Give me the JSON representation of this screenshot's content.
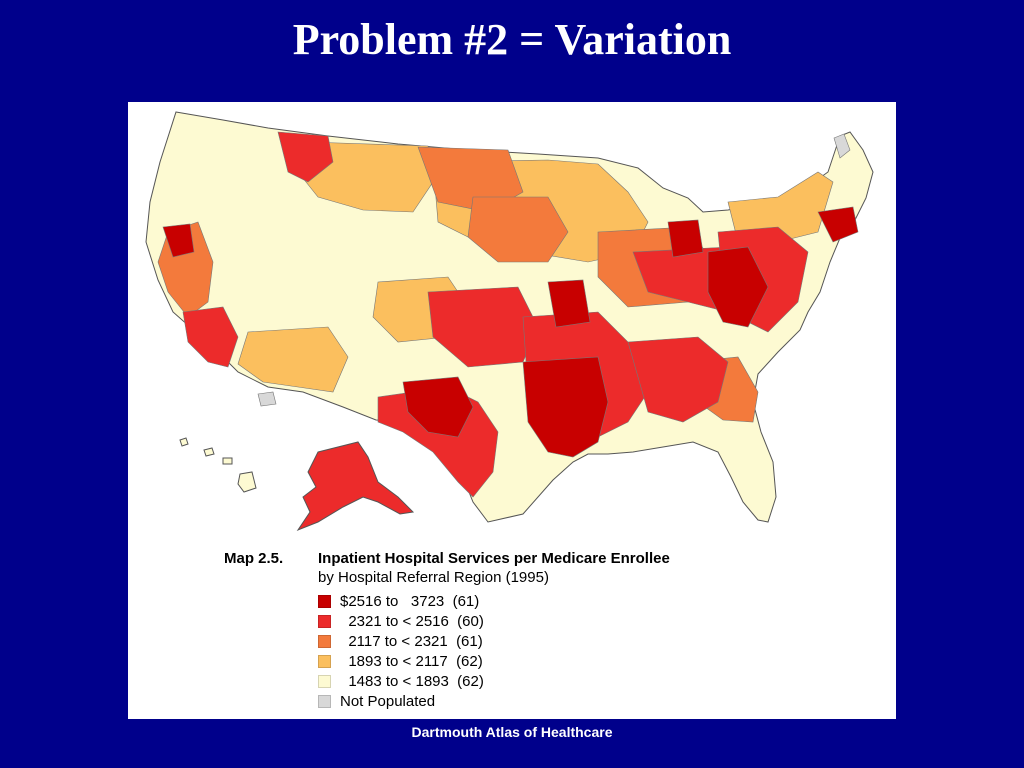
{
  "slide": {
    "title": "Problem #2 = Variation",
    "footer": "Dartmouth Atlas of Healthcare"
  },
  "legend": {
    "map_number": "Map 2.5.",
    "title": "Inpatient Hospital Services per Medicare Enrollee",
    "subtitle": "by Hospital Referral Region (1995)",
    "items": [
      {
        "label": "$2516 to   3723  (61)",
        "color": "#c80000"
      },
      {
        "label": "  2321 to < 2516  (60)",
        "color": "#ec2b2b"
      },
      {
        "label": "  2117 to < 2321  (61)",
        "color": "#f37a3c"
      },
      {
        "label": "  1893 to < 2117  (62)",
        "color": "#fbbf5e"
      },
      {
        "label": "  1483 to < 1893  (62)",
        "color": "#fdfad2"
      },
      {
        "label": "Not Populated",
        "color": "#d8d8d8"
      }
    ]
  },
  "map": {
    "name": "Hospital Referral Regions of the United States",
    "border_color": "#555555"
  }
}
